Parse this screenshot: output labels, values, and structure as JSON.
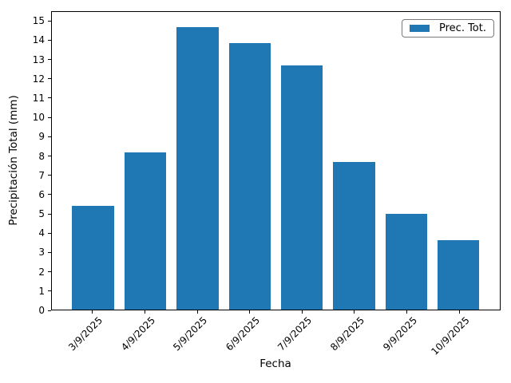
{
  "chart_data": {
    "type": "bar",
    "title": "",
    "xlabel": "Fecha",
    "ylabel": "Precipitación Total (mm)",
    "series_name": "Prec. Tot.",
    "legend_position": "upper right",
    "categories": [
      "3/9/2025",
      "4/9/2025",
      "5/9/2025",
      "6/9/2025",
      "7/9/2025",
      "8/9/2025",
      "9/9/2025",
      "10/9/2025"
    ],
    "values": [
      5.4,
      8.2,
      14.7,
      13.9,
      12.7,
      7.7,
      5.0,
      3.6
    ],
    "bar_color": "#1f77b4",
    "axis_color": "#000000",
    "ylim": [
      0,
      15.5
    ],
    "yticks": [
      0,
      1,
      2,
      3,
      4,
      5,
      6,
      7,
      8,
      9,
      10,
      11,
      12,
      13,
      14,
      15
    ],
    "x_tick_rotation": 45,
    "grid": false
  }
}
